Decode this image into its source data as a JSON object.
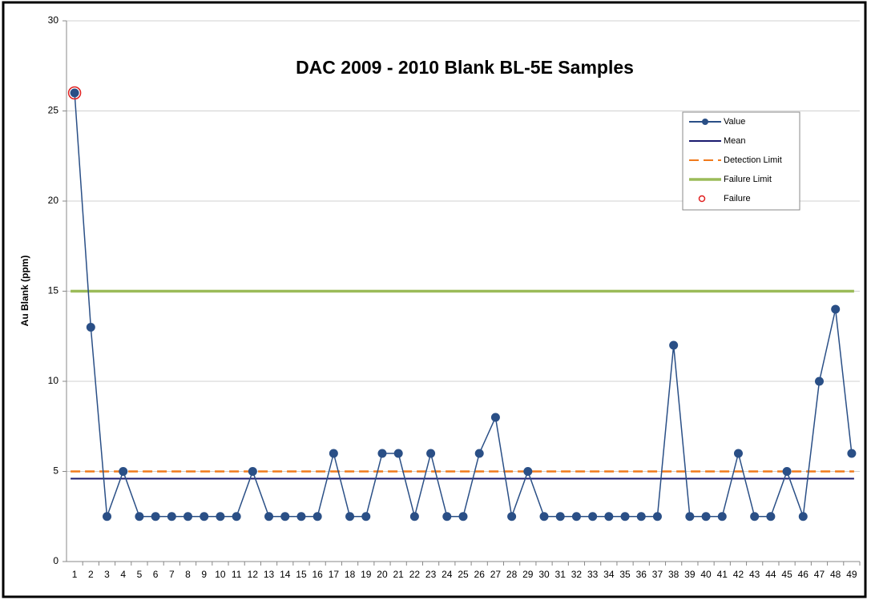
{
  "chart_data": {
    "type": "line",
    "title": "DAC 2009 - 2010 Blank BL-5E Samples",
    "y_label": "Au Blank (ppm)",
    "categories": [
      "1",
      "2",
      "3",
      "4",
      "5",
      "6",
      "7",
      "8",
      "9",
      "10",
      "11",
      "12",
      "13",
      "14",
      "15",
      "16",
      "17",
      "18",
      "19",
      "20",
      "21",
      "22",
      "23",
      "24",
      "25",
      "26",
      "27",
      "28",
      "29",
      "30",
      "31",
      "32",
      "33",
      "34",
      "35",
      "36",
      "37",
      "38",
      "39",
      "40",
      "41",
      "42",
      "43",
      "44",
      "45",
      "46",
      "47",
      "48",
      "49"
    ],
    "series": [
      {
        "name": "Value",
        "color": "#2a4f86",
        "values": [
          26,
          13,
          2.5,
          5,
          2.5,
          2.5,
          2.5,
          2.5,
          2.5,
          2.5,
          2.5,
          5,
          2.5,
          2.5,
          2.5,
          2.5,
          6,
          2.5,
          2.5,
          6,
          6,
          2.5,
          6,
          2.5,
          2.5,
          6,
          8,
          2.5,
          5,
          2.5,
          2.5,
          2.5,
          2.5,
          2.5,
          2.5,
          2.5,
          2.5,
          12,
          2.5,
          2.5,
          2.5,
          6,
          2.5,
          2.5,
          5,
          2.5,
          10,
          14,
          6
        ]
      },
      {
        "name": "Failure",
        "color": "#e02020",
        "values": [
          26,
          null,
          null,
          null,
          null,
          null,
          null,
          null,
          null,
          null,
          null,
          null,
          null,
          null,
          null,
          null,
          null,
          null,
          null,
          null,
          null,
          null,
          null,
          null,
          null,
          null,
          null,
          null,
          null,
          null,
          null,
          null,
          null,
          null,
          null,
          null,
          null,
          null,
          null,
          null,
          null,
          null,
          null,
          null,
          null,
          null,
          null,
          null,
          null
        ]
      }
    ],
    "reference_lines": [
      {
        "name": "Mean",
        "color": "#1a1a6e",
        "value": 4.6,
        "style": "solid"
      },
      {
        "name": "Detection Limit",
        "color": "#f07a1c",
        "value": 5,
        "style": "dashed"
      },
      {
        "name": "Failure Limit",
        "color": "#9bbb59",
        "value": 15,
        "style": "solid"
      }
    ],
    "ylim": [
      0,
      30
    ],
    "yticks": [
      0,
      5,
      10,
      15,
      20,
      25,
      30
    ],
    "grid": true,
    "legend": "upper right"
  }
}
